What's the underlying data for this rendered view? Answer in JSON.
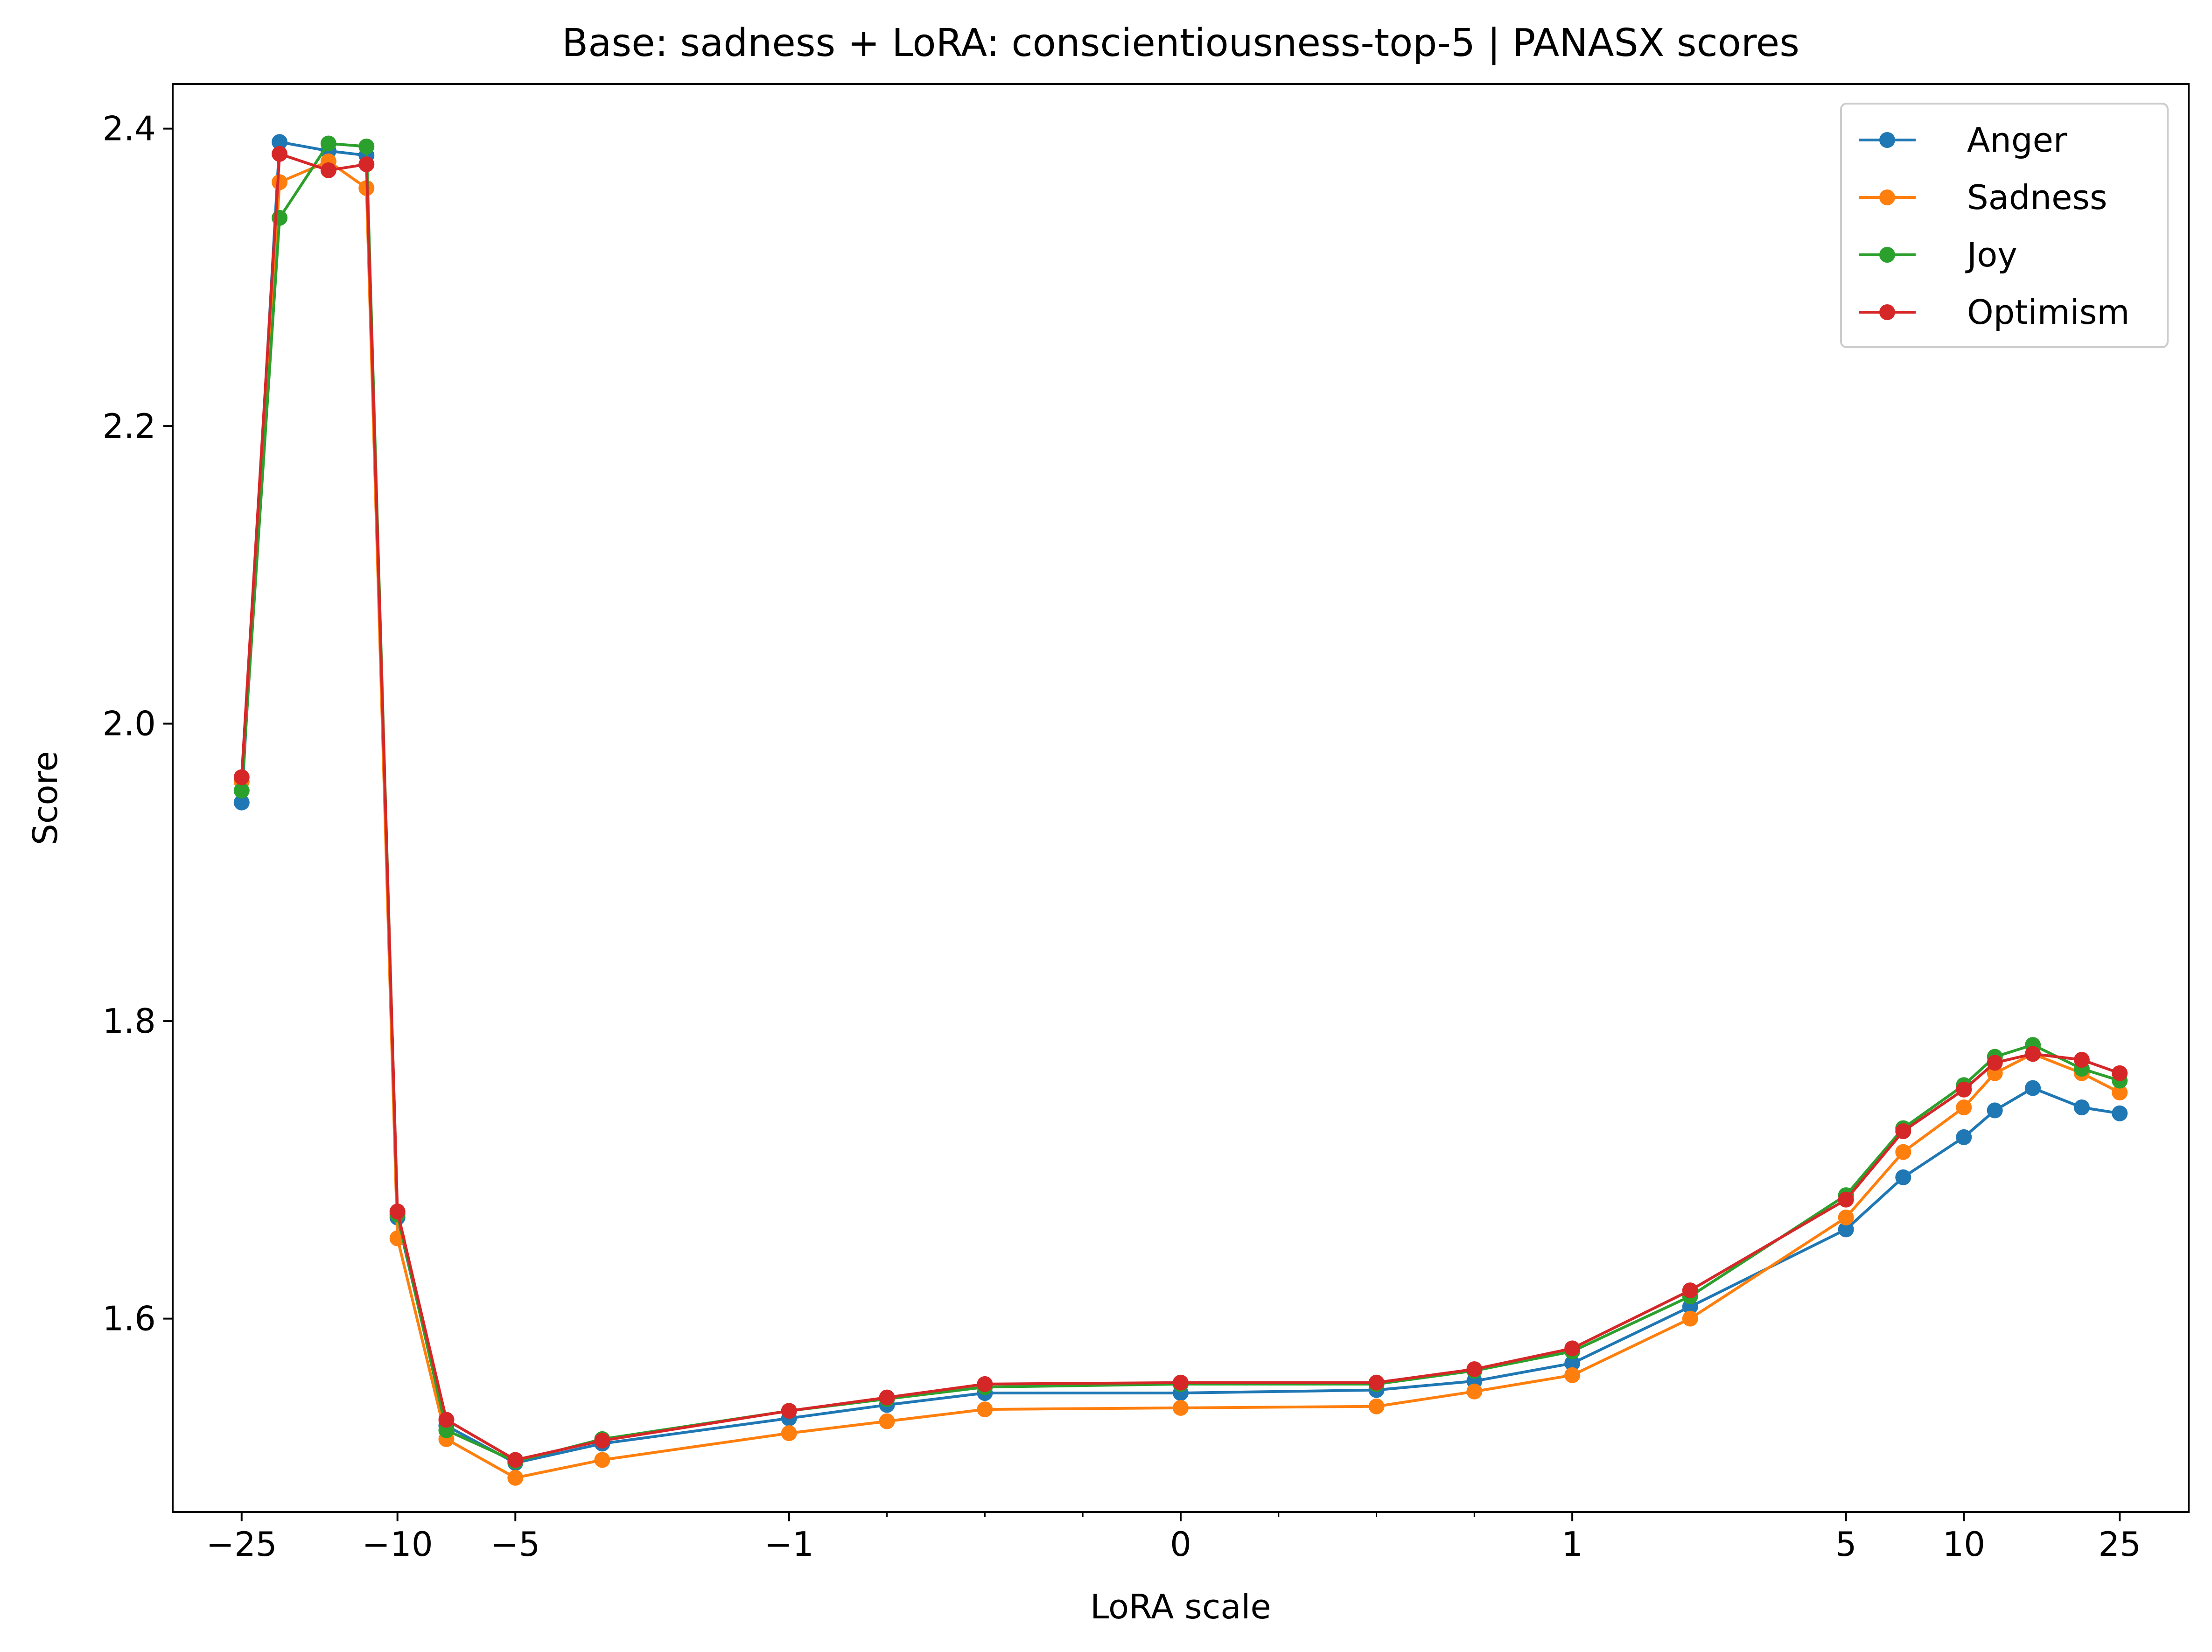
{
  "chart_data": {
    "type": "line",
    "title": "Base: sadness + LoRA: conscientiousness-top-5 | PANASX scores",
    "xlabel": "LoRA scale",
    "ylabel": "Score",
    "xscale": "symlog",
    "xlim": [
      -37.5,
      37.5
    ],
    "ylim": [
      1.47,
      2.43
    ],
    "grid": false,
    "legend_position": "top-right",
    "x_tick_labels": [
      "−25",
      "−10",
      "−5",
      "−1",
      "0",
      "1",
      "5",
      "10",
      "25"
    ],
    "x_ticks": [
      -25,
      -10,
      -5,
      -1,
      0,
      1,
      5,
      10,
      25
    ],
    "y_tick_labels": [
      "1.6",
      "1.8",
      "2.0",
      "2.2",
      "2.4"
    ],
    "y_ticks": [
      1.6,
      1.8,
      2.0,
      2.2,
      2.4
    ],
    "x": [
      -25,
      -20,
      -15,
      -12,
      -10,
      -7.5,
      -5,
      -3,
      -1,
      -0.75,
      -0.5,
      0,
      0.5,
      0.75,
      1,
      2,
      5,
      7,
      10,
      12,
      15,
      20,
      25
    ],
    "series": [
      {
        "name": "Anger",
        "color": "#1f77b4",
        "values": [
          1.947,
          2.391,
          2.385,
          2.382,
          1.668,
          1.528,
          1.503,
          1.516,
          1.533,
          1.542,
          1.55,
          1.55,
          1.552,
          1.558,
          1.57,
          1.608,
          1.66,
          1.695,
          1.722,
          1.74,
          1.755,
          1.742,
          1.738
        ]
      },
      {
        "name": "Sadness",
        "color": "#ff7f0e",
        "values": [
          1.961,
          2.364,
          2.378,
          2.36,
          1.654,
          1.519,
          1.493,
          1.505,
          1.523,
          1.531,
          1.539,
          1.54,
          1.541,
          1.551,
          1.562,
          1.6,
          1.668,
          1.712,
          1.742,
          1.765,
          1.778,
          1.765,
          1.752
        ]
      },
      {
        "name": "Joy",
        "color": "#2ca02c",
        "values": [
          1.955,
          2.34,
          2.39,
          2.388,
          1.67,
          1.525,
          1.504,
          1.519,
          1.538,
          1.546,
          1.554,
          1.556,
          1.556,
          1.565,
          1.578,
          1.615,
          1.683,
          1.728,
          1.757,
          1.776,
          1.784,
          1.768,
          1.76
        ]
      },
      {
        "name": "Optimism",
        "color": "#d62728",
        "values": [
          1.964,
          2.383,
          2.372,
          2.376,
          1.672,
          1.532,
          1.505,
          1.518,
          1.538,
          1.547,
          1.556,
          1.557,
          1.557,
          1.566,
          1.58,
          1.619,
          1.68,
          1.726,
          1.754,
          1.772,
          1.778,
          1.774,
          1.765
        ]
      }
    ]
  }
}
